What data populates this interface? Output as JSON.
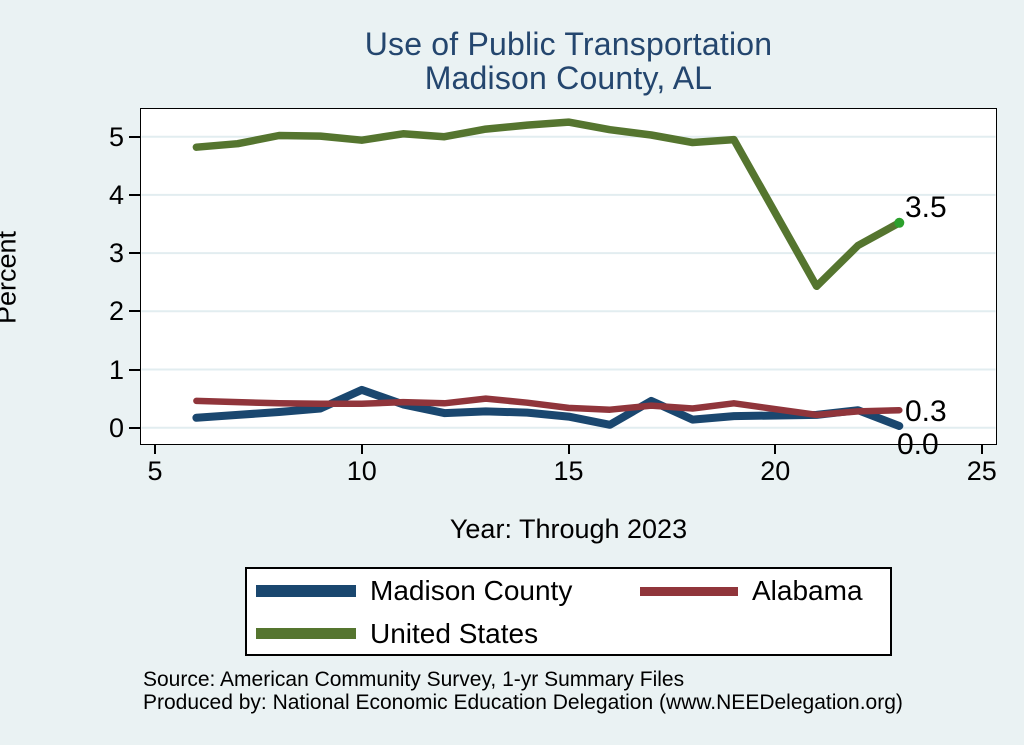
{
  "title": {
    "line1": "Use of Public Transportation",
    "line2": "Madison County, AL"
  },
  "chart_data": {
    "type": "line",
    "title": "Use of Public Transportation — Madison County, AL",
    "xlabel": "Year: Through 2023",
    "ylabel": "Percent",
    "xlim": [
      4.64,
      25.36
    ],
    "ylim": [
      0,
      5.5
    ],
    "grid": "horizontal",
    "legend_position": "bottom",
    "x_ticks": [
      5,
      10,
      15,
      20,
      25
    ],
    "y_ticks": [
      0,
      1,
      2,
      3,
      4,
      5
    ],
    "x_tick_labels": [
      "5",
      "10",
      "15",
      "20",
      "25"
    ],
    "y_tick_labels": [
      "0",
      "1",
      "2",
      "3",
      "4",
      "5"
    ],
    "x": [
      6,
      7,
      8,
      9,
      10,
      11,
      12,
      13,
      14,
      15,
      16,
      17,
      18,
      19,
      21,
      22,
      23
    ],
    "series": [
      {
        "key": "madison",
        "name": "Madison County",
        "color": "#1a476f",
        "end_label": "0.0",
        "values": [
          0.17,
          0.22,
          0.27,
          0.33,
          0.65,
          0.4,
          0.25,
          0.28,
          0.26,
          0.19,
          0.05,
          0.46,
          0.14,
          0.2,
          0.22,
          0.3,
          0.03
        ]
      },
      {
        "key": "alabama",
        "name": "Alabama",
        "color": "#90353b",
        "end_label": "0.3",
        "values": [
          0.46,
          0.44,
          0.42,
          0.41,
          0.41,
          0.44,
          0.42,
          0.5,
          0.43,
          0.34,
          0.31,
          0.38,
          0.33,
          0.42,
          0.22,
          0.28,
          0.3
        ]
      },
      {
        "key": "us",
        "name": "United States",
        "color": "#55752f",
        "end_label": "3.5",
        "end_marker_color": "#2ca02c",
        "values": [
          4.82,
          4.88,
          5.02,
          5.01,
          4.94,
          5.05,
          5.0,
          5.13,
          5.2,
          5.25,
          5.12,
          5.03,
          4.9,
          4.95,
          2.43,
          3.13,
          3.52
        ]
      }
    ]
  },
  "colors": {
    "background": "#eaf2f3",
    "plot_background": "#ffffff",
    "gridline": "#e2edf0",
    "title_text": "#24466e"
  },
  "footer": {
    "source": "Source: American Community Survey, 1-yr Summary Files",
    "produced_by": "Produced by: National Economic Education Delegation (www.NEEDelegation.org)"
  }
}
